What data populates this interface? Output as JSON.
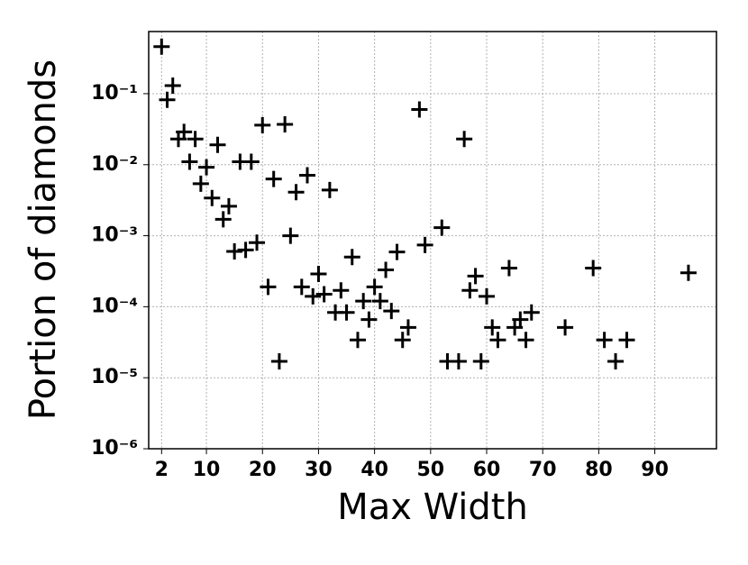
{
  "chart_data": {
    "type": "scatter",
    "xlabel": "Max Width",
    "ylabel": "Portion of diamonds",
    "yscale": "log",
    "grid": true,
    "marker": "+",
    "color": "#000000",
    "xlim": [
      -0.3,
      101
    ],
    "ylim": [
      1e-06,
      0.75
    ],
    "xticks": [
      2,
      10,
      20,
      30,
      40,
      50,
      60,
      70,
      80,
      90
    ],
    "yticks": [
      {
        "value": 1e-06,
        "label": "10⁻⁶"
      },
      {
        "value": 1e-05,
        "label": "10⁻⁵"
      },
      {
        "value": 0.0001,
        "label": "10⁻⁴"
      },
      {
        "value": 0.001,
        "label": "10⁻³"
      },
      {
        "value": 0.01,
        "label": "10⁻²"
      },
      {
        "value": 0.1,
        "label": "10⁻¹"
      }
    ],
    "x": [
      2,
      3,
      4,
      5,
      6,
      7,
      8,
      9,
      10,
      11,
      12,
      13,
      14,
      15,
      16,
      17,
      18,
      19,
      20,
      21,
      22,
      23,
      24,
      25,
      26,
      27,
      28,
      29,
      30,
      31,
      32,
      33,
      34,
      35,
      36,
      37,
      38,
      39,
      40,
      41,
      42,
      43,
      44,
      45,
      46,
      48,
      49,
      52,
      53,
      55,
      56,
      57,
      58,
      59,
      60,
      61,
      62,
      64,
      65,
      66,
      67,
      68,
      74,
      79,
      81,
      83,
      85,
      96
    ],
    "y": [
      0.46,
      0.082,
      0.13,
      0.023,
      0.029,
      0.011,
      0.023,
      0.0054,
      0.0092,
      0.0034,
      0.019,
      0.0017,
      0.0026,
      0.0006,
      0.011,
      0.00063,
      0.011,
      0.0008,
      0.036,
      0.00019,
      0.0063,
      1.7e-05,
      0.037,
      0.001,
      0.0041,
      0.00019,
      0.0071,
      0.00014,
      0.00029,
      0.00015,
      0.0044,
      8.3e-05,
      0.00017,
      8.3e-05,
      0.0005,
      3.4e-05,
      0.00012,
      6.6e-05,
      0.00019,
      0.00012,
      0.00033,
      8.7e-05,
      0.00059,
      3.4e-05,
      5.1e-05,
      0.06,
      0.00074,
      0.0013,
      1.7e-05,
      1.7e-05,
      0.023,
      0.00017,
      0.00027,
      1.7e-05,
      0.00014,
      5.1e-05,
      3.4e-05,
      0.00035,
      5.1e-05,
      6.6e-05,
      3.4e-05,
      8.3e-05,
      5.1e-05,
      0.00035,
      3.4e-05,
      1.7e-05,
      3.4e-05,
      0.0003
    ]
  }
}
